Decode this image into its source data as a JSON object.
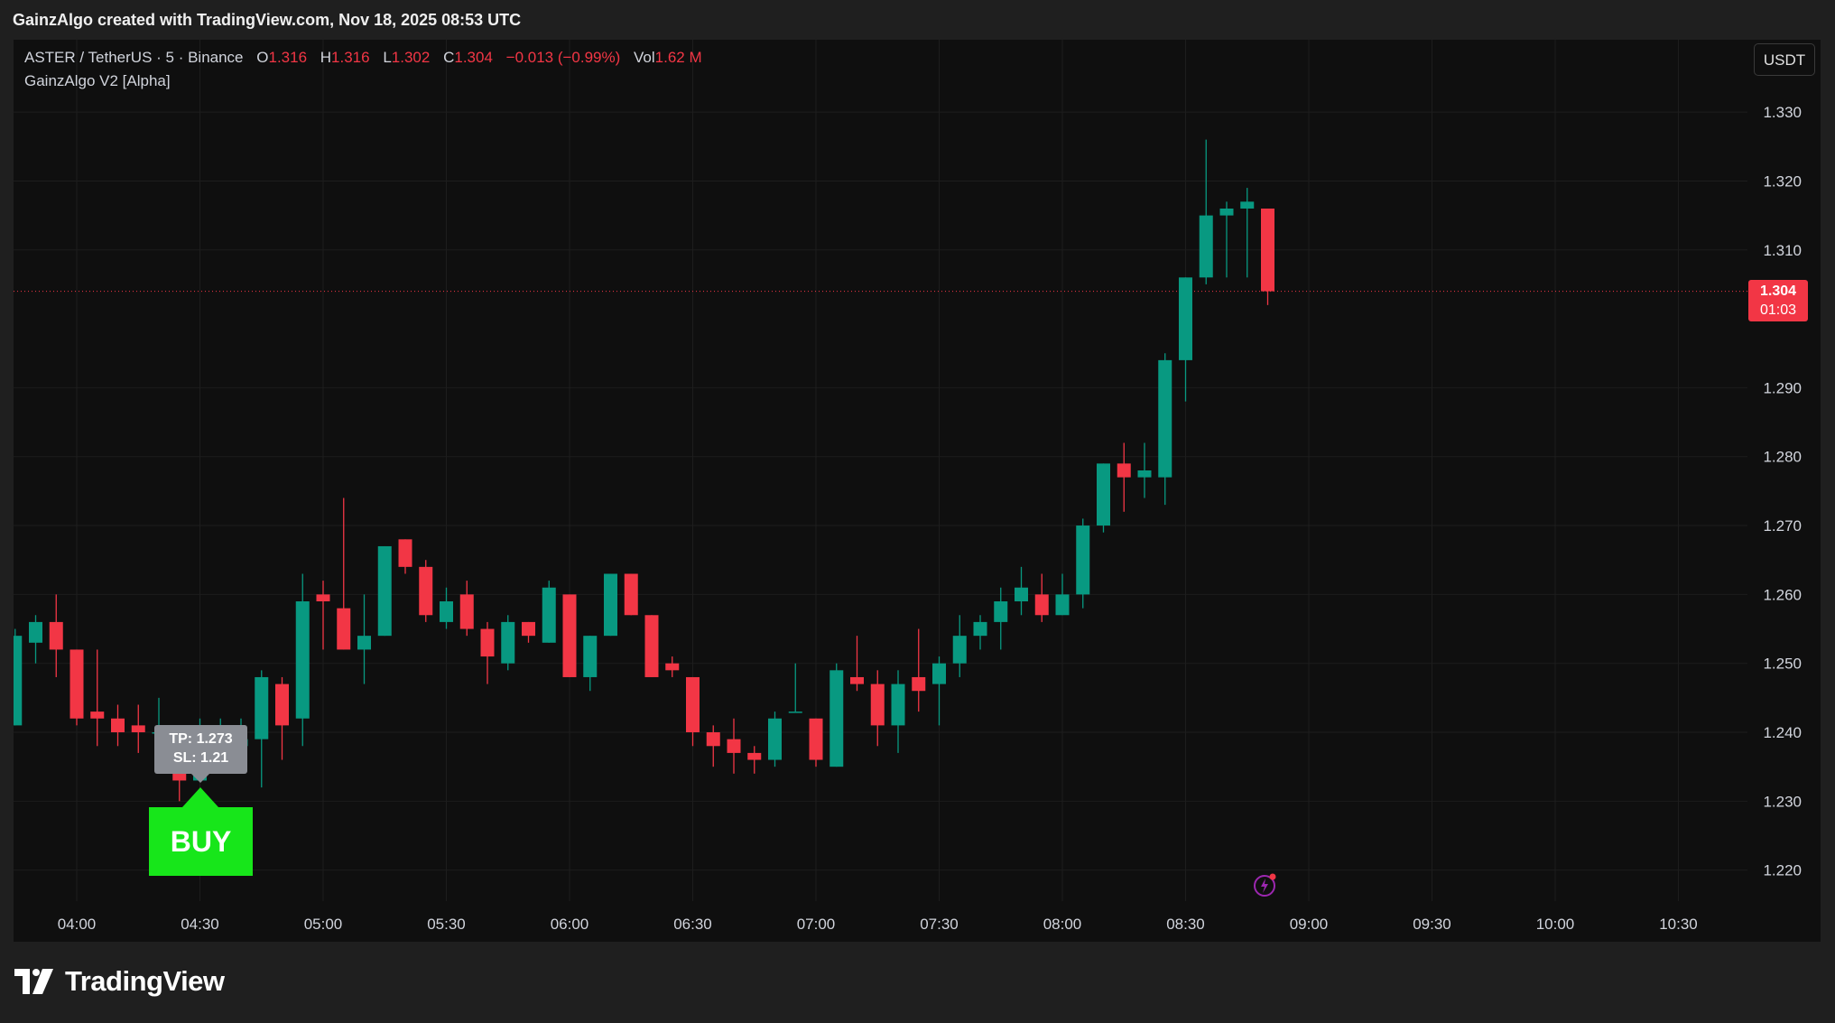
{
  "header": {
    "title": "GainzAlgo created with TradingView.com, Nov 18, 2025 08:53 UTC"
  },
  "legend": {
    "symbol": "ASTER / TetherUS · 5 · Binance",
    "open_label": "O",
    "open": "1.316",
    "high_label": "H",
    "high": "1.316",
    "low_label": "L",
    "low": "1.302",
    "close_label": "C",
    "close": "1.304",
    "change": "−0.013 (−0.99%)",
    "vol_label": "Vol",
    "vol": "1.62 M",
    "indicator": "GainzAlgo V2 [Alpha]"
  },
  "currency_button": "USDT",
  "price_tag": {
    "price": "1.304",
    "countdown": "01:03"
  },
  "signal": {
    "tp": "TP: 1.273",
    "sl": "SL: 1.21",
    "label": "BUY"
  },
  "footer": {
    "brand": "TradingView"
  },
  "icons": [
    "tradingview-logo-icon",
    "lightning-icon"
  ],
  "colors": {
    "up": "#089981",
    "down": "#f23645",
    "buy": "#17e61a",
    "background": "#0f0f0f"
  },
  "chart_data": {
    "type": "candlestick",
    "interval_minutes": 5,
    "x_tick_labels": [
      "04:00",
      "04:30",
      "05:00",
      "05:30",
      "06:00",
      "06:30",
      "07:00",
      "07:30",
      "08:00",
      "08:30",
      "09:00",
      "09:30",
      "10:00",
      "10:30"
    ],
    "y_tick_labels": [
      "1.220",
      "1.230",
      "1.240",
      "1.250",
      "1.260",
      "1.270",
      "1.280",
      "1.290",
      "1.310",
      "1.320",
      "1.330"
    ],
    "ylim": [
      1.2155,
      1.3405
    ],
    "last_price": 1.304,
    "candles": [
      {
        "t": "03:45",
        "o": 1.241,
        "h": 1.255,
        "l": 1.241,
        "c": 1.254
      },
      {
        "t": "03:50",
        "o": 1.253,
        "h": 1.257,
        "l": 1.25,
        "c": 1.256
      },
      {
        "t": "03:55",
        "o": 1.256,
        "h": 1.26,
        "l": 1.248,
        "c": 1.252
      },
      {
        "t": "04:00",
        "o": 1.252,
        "h": 1.252,
        "l": 1.241,
        "c": 1.242
      },
      {
        "t": "04:05",
        "o": 1.243,
        "h": 1.252,
        "l": 1.238,
        "c": 1.242
      },
      {
        "t": "04:10",
        "o": 1.242,
        "h": 1.244,
        "l": 1.238,
        "c": 1.24
      },
      {
        "t": "04:15",
        "o": 1.241,
        "h": 1.244,
        "l": 1.237,
        "c": 1.24
      },
      {
        "t": "04:20",
        "o": 1.24,
        "h": 1.245,
        "l": 1.235,
        "c": 1.24
      },
      {
        "t": "04:25",
        "o": 1.24,
        "h": 1.241,
        "l": 1.23,
        "c": 1.233
      },
      {
        "t": "04:30",
        "o": 1.233,
        "h": 1.242,
        "l": 1.233,
        "c": 1.238
      },
      {
        "t": "04:35",
        "o": 1.238,
        "h": 1.242,
        "l": 1.235,
        "c": 1.24
      },
      {
        "t": "04:40",
        "o": 1.238,
        "h": 1.242,
        "l": 1.236,
        "c": 1.239
      },
      {
        "t": "04:45",
        "o": 1.239,
        "h": 1.249,
        "l": 1.232,
        "c": 1.248
      },
      {
        "t": "04:50",
        "o": 1.247,
        "h": 1.248,
        "l": 1.236,
        "c": 1.241
      },
      {
        "t": "04:55",
        "o": 1.242,
        "h": 1.263,
        "l": 1.238,
        "c": 1.259
      },
      {
        "t": "05:00",
        "o": 1.26,
        "h": 1.262,
        "l": 1.252,
        "c": 1.259
      },
      {
        "t": "05:05",
        "o": 1.258,
        "h": 1.274,
        "l": 1.252,
        "c": 1.252
      },
      {
        "t": "05:10",
        "o": 1.252,
        "h": 1.26,
        "l": 1.247,
        "c": 1.254
      },
      {
        "t": "05:15",
        "o": 1.254,
        "h": 1.267,
        "l": 1.254,
        "c": 1.267
      },
      {
        "t": "05:20",
        "o": 1.268,
        "h": 1.268,
        "l": 1.263,
        "c": 1.264
      },
      {
        "t": "05:25",
        "o": 1.264,
        "h": 1.265,
        "l": 1.256,
        "c": 1.257
      },
      {
        "t": "05:30",
        "o": 1.256,
        "h": 1.261,
        "l": 1.255,
        "c": 1.259
      },
      {
        "t": "05:35",
        "o": 1.26,
        "h": 1.262,
        "l": 1.254,
        "c": 1.255
      },
      {
        "t": "05:40",
        "o": 1.255,
        "h": 1.256,
        "l": 1.247,
        "c": 1.251
      },
      {
        "t": "05:45",
        "o": 1.25,
        "h": 1.257,
        "l": 1.249,
        "c": 1.256
      },
      {
        "t": "05:50",
        "o": 1.256,
        "h": 1.256,
        "l": 1.253,
        "c": 1.254
      },
      {
        "t": "05:55",
        "o": 1.253,
        "h": 1.262,
        "l": 1.253,
        "c": 1.261
      },
      {
        "t": "06:00",
        "o": 1.26,
        "h": 1.26,
        "l": 1.248,
        "c": 1.248
      },
      {
        "t": "06:05",
        "o": 1.248,
        "h": 1.254,
        "l": 1.246,
        "c": 1.254
      },
      {
        "t": "06:10",
        "o": 1.254,
        "h": 1.263,
        "l": 1.254,
        "c": 1.263
      },
      {
        "t": "06:15",
        "o": 1.263,
        "h": 1.263,
        "l": 1.257,
        "c": 1.257
      },
      {
        "t": "06:20",
        "o": 1.257,
        "h": 1.257,
        "l": 1.248,
        "c": 1.248
      },
      {
        "t": "06:25",
        "o": 1.25,
        "h": 1.251,
        "l": 1.248,
        "c": 1.249
      },
      {
        "t": "06:30",
        "o": 1.248,
        "h": 1.248,
        "l": 1.238,
        "c": 1.24
      },
      {
        "t": "06:35",
        "o": 1.24,
        "h": 1.241,
        "l": 1.235,
        "c": 1.238
      },
      {
        "t": "06:40",
        "o": 1.239,
        "h": 1.242,
        "l": 1.234,
        "c": 1.237
      },
      {
        "t": "06:45",
        "o": 1.237,
        "h": 1.238,
        "l": 1.234,
        "c": 1.236
      },
      {
        "t": "06:50",
        "o": 1.236,
        "h": 1.243,
        "l": 1.235,
        "c": 1.242
      },
      {
        "t": "06:55",
        "o": 1.243,
        "h": 1.25,
        "l": 1.243,
        "c": 1.243
      },
      {
        "t": "07:00",
        "o": 1.242,
        "h": 1.242,
        "l": 1.235,
        "c": 1.236
      },
      {
        "t": "07:05",
        "o": 1.235,
        "h": 1.25,
        "l": 1.235,
        "c": 1.249
      },
      {
        "t": "07:10",
        "o": 1.248,
        "h": 1.254,
        "l": 1.246,
        "c": 1.247
      },
      {
        "t": "07:15",
        "o": 1.247,
        "h": 1.249,
        "l": 1.238,
        "c": 1.241
      },
      {
        "t": "07:20",
        "o": 1.241,
        "h": 1.249,
        "l": 1.237,
        "c": 1.247
      },
      {
        "t": "07:25",
        "o": 1.248,
        "h": 1.255,
        "l": 1.243,
        "c": 1.246
      },
      {
        "t": "07:30",
        "o": 1.247,
        "h": 1.251,
        "l": 1.241,
        "c": 1.25
      },
      {
        "t": "07:35",
        "o": 1.25,
        "h": 1.257,
        "l": 1.248,
        "c": 1.254
      },
      {
        "t": "07:40",
        "o": 1.254,
        "h": 1.257,
        "l": 1.252,
        "c": 1.256
      },
      {
        "t": "07:45",
        "o": 1.256,
        "h": 1.261,
        "l": 1.252,
        "c": 1.259
      },
      {
        "t": "07:50",
        "o": 1.259,
        "h": 1.264,
        "l": 1.257,
        "c": 1.261
      },
      {
        "t": "07:55",
        "o": 1.26,
        "h": 1.263,
        "l": 1.256,
        "c": 1.257
      },
      {
        "t": "08:00",
        "o": 1.257,
        "h": 1.263,
        "l": 1.257,
        "c": 1.26
      },
      {
        "t": "08:05",
        "o": 1.26,
        "h": 1.271,
        "l": 1.258,
        "c": 1.27
      },
      {
        "t": "08:10",
        "o": 1.27,
        "h": 1.279,
        "l": 1.269,
        "c": 1.279
      },
      {
        "t": "08:15",
        "o": 1.279,
        "h": 1.282,
        "l": 1.272,
        "c": 1.277
      },
      {
        "t": "08:20",
        "o": 1.277,
        "h": 1.282,
        "l": 1.274,
        "c": 1.278
      },
      {
        "t": "08:25",
        "o": 1.277,
        "h": 1.295,
        "l": 1.273,
        "c": 1.294
      },
      {
        "t": "08:30",
        "o": 1.294,
        "h": 1.306,
        "l": 1.288,
        "c": 1.306
      },
      {
        "t": "08:35",
        "o": 1.306,
        "h": 1.326,
        "l": 1.305,
        "c": 1.315
      },
      {
        "t": "08:40",
        "o": 1.315,
        "h": 1.317,
        "l": 1.306,
        "c": 1.316
      },
      {
        "t": "08:45",
        "o": 1.316,
        "h": 1.319,
        "l": 1.306,
        "c": 1.317
      },
      {
        "t": "08:50",
        "o": 1.316,
        "h": 1.316,
        "l": 1.302,
        "c": 1.304
      }
    ],
    "signals": [
      {
        "t": "04:25",
        "type": "BUY",
        "tp": 1.273,
        "sl": 1.21
      }
    ]
  }
}
